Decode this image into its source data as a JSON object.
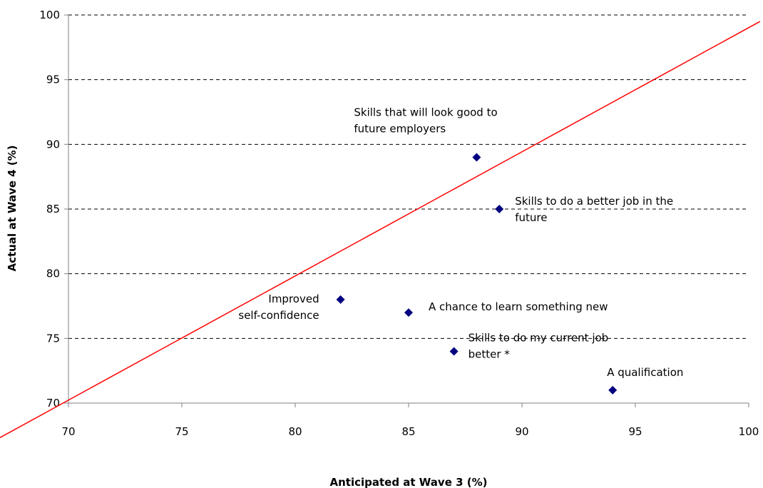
{
  "chart_data": {
    "type": "scatter",
    "title": "",
    "xlabel": "Anticipated at Wave 3 (%)",
    "ylabel": "Actual at Wave 4 (%)",
    "xlim": [
      70,
      100
    ],
    "ylim": [
      70,
      100
    ],
    "x_ticks": [
      70,
      75,
      80,
      85,
      90,
      95,
      100
    ],
    "y_ticks": [
      70,
      75,
      80,
      85,
      90,
      95,
      100
    ],
    "grid": "horizontal dashed",
    "marker_color": "#000080",
    "line_color": "#ff0000",
    "reference_line": {
      "type": "fitted line",
      "points": [
        [
          65.8,
          66.2
        ],
        [
          100.5,
          99.5
        ]
      ]
    },
    "points": [
      {
        "x": 88,
        "y": 89,
        "label_lines": [
          "Skills that will look good to",
          "future employers"
        ]
      },
      {
        "x": 89,
        "y": 85,
        "label_lines": [
          "Skills to do a better job in the",
          "future"
        ]
      },
      {
        "x": 82,
        "y": 78,
        "label_lines": [
          "Improved",
          "self-confidence"
        ]
      },
      {
        "x": 85,
        "y": 77,
        "label_lines": [
          "A chance to learn something new"
        ]
      },
      {
        "x": 87,
        "y": 74,
        "label_lines": [
          "Skills to do my current job",
          "better *"
        ]
      },
      {
        "x": 94,
        "y": 71,
        "label_lines": [
          "A qualification"
        ]
      }
    ]
  }
}
